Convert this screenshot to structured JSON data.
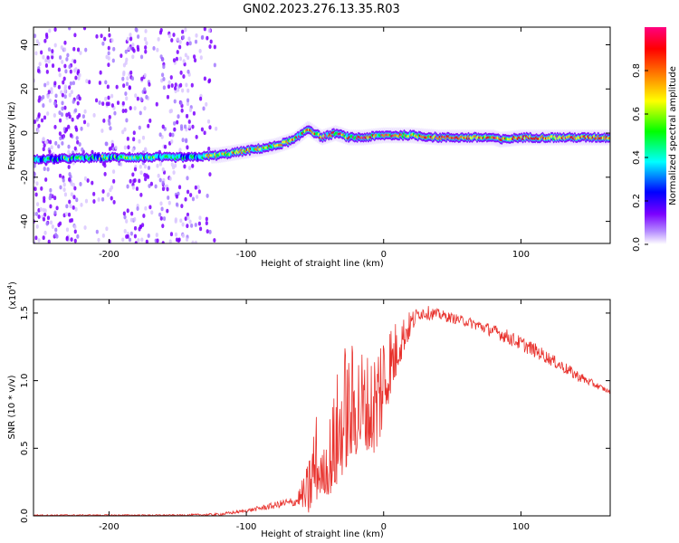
{
  "title": "GN02.2023.276.13.35.R03",
  "chart_data": [
    {
      "type": "heatmap",
      "xlabel": "Height of straight line (km)",
      "ylabel": "Frequency (Hz)",
      "xlim": [
        -255,
        165
      ],
      "ylim": [
        -50,
        48
      ],
      "x_ticks": [
        -200,
        -100,
        0,
        100
      ],
      "x_tick_labels": [
        "-200",
        "-100",
        "0",
        "100"
      ],
      "y_ticks": [
        -40,
        -20,
        0,
        20,
        40
      ],
      "y_tick_labels": [
        "-40",
        "-20",
        "0",
        "20",
        "40"
      ],
      "colorbar": {
        "label": "Normalized spectral amplitude",
        "range": [
          0,
          1
        ],
        "ticks": [
          0.0,
          0.2,
          0.4,
          0.6,
          0.8
        ],
        "tick_labels": [
          "0.0",
          "0.2",
          "0.4",
          "0.6",
          "0.8"
        ],
        "colormap": [
          "#ffffff",
          "#7b00ff",
          "#0000ff",
          "#00ffff",
          "#00ff00",
          "#ffff00",
          "#ff7f00",
          "#ff0000",
          "#ff0080"
        ]
      },
      "grid": false,
      "dominant_frequency_track": [
        {
          "x": -255,
          "y": -12
        },
        {
          "x": -200,
          "y": -11
        },
        {
          "x": -180,
          "y": -11
        },
        {
          "x": -160,
          "y": -11
        },
        {
          "x": -140,
          "y": -11
        },
        {
          "x": -120,
          "y": -10
        },
        {
          "x": -100,
          "y": -8
        },
        {
          "x": -80,
          "y": -6
        },
        {
          "x": -65,
          "y": -3
        },
        {
          "x": -55,
          "y": 2
        },
        {
          "x": -45,
          "y": -2
        },
        {
          "x": -35,
          "y": 0
        },
        {
          "x": -25,
          "y": -2
        },
        {
          "x": -15,
          "y": -2
        },
        {
          "x": 0,
          "y": -1
        },
        {
          "x": 20,
          "y": -1
        },
        {
          "x": 40,
          "y": -2
        },
        {
          "x": 60,
          "y": -2
        },
        {
          "x": 80,
          "y": -2
        },
        {
          "x": 85,
          "y": -3
        },
        {
          "x": 100,
          "y": -2
        },
        {
          "x": 130,
          "y": -2
        },
        {
          "x": 165,
          "y": -2
        }
      ]
    },
    {
      "type": "line",
      "xlabel": "Height of straight line (km)",
      "ylabel": "SNR (10 * v/v)",
      "multiplier_label": "(x10",
      "multiplier_exponent": "4",
      "xlim": [
        -255,
        165
      ],
      "ylim": [
        0,
        1.6
      ],
      "x_ticks": [
        -200,
        -100,
        0,
        100
      ],
      "x_tick_labels": [
        "-200",
        "-100",
        "0",
        "100"
      ],
      "y_ticks": [
        0.0,
        0.5,
        1.0,
        1.5
      ],
      "y_tick_labels": [
        "0.0",
        "0.5",
        "1.0",
        "1.5"
      ],
      "grid": false,
      "series": [
        {
          "color": "#e8322d",
          "envelope": [
            {
              "x": -255,
              "y": 0.01
            },
            {
              "x": -200,
              "y": 0.01
            },
            {
              "x": -150,
              "y": 0.01
            },
            {
              "x": -120,
              "y": 0.02
            },
            {
              "x": -100,
              "y": 0.05
            },
            {
              "x": -80,
              "y": 0.1
            },
            {
              "x": -65,
              "y": 0.15
            },
            {
              "x": -60,
              "y": 0.25
            },
            {
              "x": -55,
              "y": 0.4
            },
            {
              "x": -50,
              "y": 0.87
            },
            {
              "x": -45,
              "y": 0.45
            },
            {
              "x": -35,
              "y": 1.0
            },
            {
              "x": -30,
              "y": 1.35
            },
            {
              "x": -25,
              "y": 1.25
            },
            {
              "x": -20,
              "y": 1.35
            },
            {
              "x": -10,
              "y": 1.2
            },
            {
              "x": -2,
              "y": 1.52
            },
            {
              "x": 10,
              "y": 1.45
            },
            {
              "x": 20,
              "y": 1.52
            },
            {
              "x": 30,
              "y": 1.56
            },
            {
              "x": 50,
              "y": 1.5
            },
            {
              "x": 70,
              "y": 1.45
            },
            {
              "x": 90,
              "y": 1.38
            },
            {
              "x": 110,
              "y": 1.28
            },
            {
              "x": 130,
              "y": 1.15
            },
            {
              "x": 150,
              "y": 1.02
            },
            {
              "x": 165,
              "y": 0.93
            }
          ],
          "baseline": [
            {
              "x": -255,
              "y": 0.0
            },
            {
              "x": -120,
              "y": 0.0
            },
            {
              "x": -80,
              "y": 0.05
            },
            {
              "x": -60,
              "y": 0.08
            },
            {
              "x": -55,
              "y": 0.0
            },
            {
              "x": -45,
              "y": 0.18
            },
            {
              "x": -40,
              "y": 0.15
            },
            {
              "x": -35,
              "y": 0.2
            },
            {
              "x": -25,
              "y": 0.4
            },
            {
              "x": -15,
              "y": 0.5
            },
            {
              "x": -5,
              "y": 0.45
            },
            {
              "x": 5,
              "y": 0.9
            },
            {
              "x": 15,
              "y": 1.2
            },
            {
              "x": 25,
              "y": 1.45
            },
            {
              "x": 40,
              "y": 1.45
            },
            {
              "x": 60,
              "y": 1.4
            },
            {
              "x": 80,
              "y": 1.32
            },
            {
              "x": 100,
              "y": 1.22
            },
            {
              "x": 120,
              "y": 1.12
            },
            {
              "x": 140,
              "y": 1.0
            },
            {
              "x": 165,
              "y": 0.9
            }
          ]
        }
      ]
    }
  ]
}
